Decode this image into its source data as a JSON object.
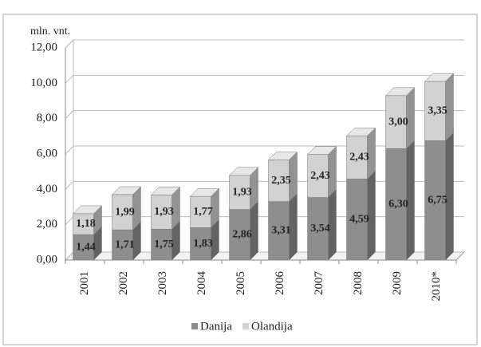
{
  "chart_data": {
    "type": "bar3d_stacked",
    "y_axis_label": "mln. vnt.",
    "categories": [
      "2001",
      "2002",
      "2003",
      "2004",
      "2005",
      "2006",
      "2007",
      "2008",
      "2009",
      "2010*"
    ],
    "series": [
      {
        "name": "Danija",
        "color": "#8e8e8e",
        "values": [
          1.44,
          1.71,
          1.75,
          1.83,
          2.86,
          3.31,
          3.54,
          4.59,
          6.3,
          6.75
        ],
        "value_labels": [
          "1,44",
          "1,71",
          "1,75",
          "1,83",
          "2,86",
          "3,31",
          "3,54",
          "4,59",
          "6,30",
          "6,75"
        ]
      },
      {
        "name": "Olandija",
        "color": "#d2d2d2",
        "values": [
          1.18,
          1.99,
          1.93,
          1.77,
          1.93,
          2.35,
          2.43,
          2.43,
          3.0,
          3.35
        ],
        "value_labels": [
          "1,18",
          "1,99",
          "1,93",
          "1,77",
          "1,93",
          "2,35",
          "2,43",
          "2,43",
          "3,00",
          "3,35"
        ]
      }
    ],
    "ylim": [
      0,
      12
    ],
    "yticks": [
      {
        "value": 0,
        "label": "0,00"
      },
      {
        "value": 2,
        "label": "2,00"
      },
      {
        "value": 4,
        "label": "4,00"
      },
      {
        "value": 6,
        "label": "6,00"
      },
      {
        "value": 8,
        "label": "8,00"
      },
      {
        "value": 10,
        "label": "10,00"
      },
      {
        "value": 12,
        "label": "12,00"
      }
    ],
    "grid": true,
    "legend": "bottom"
  }
}
